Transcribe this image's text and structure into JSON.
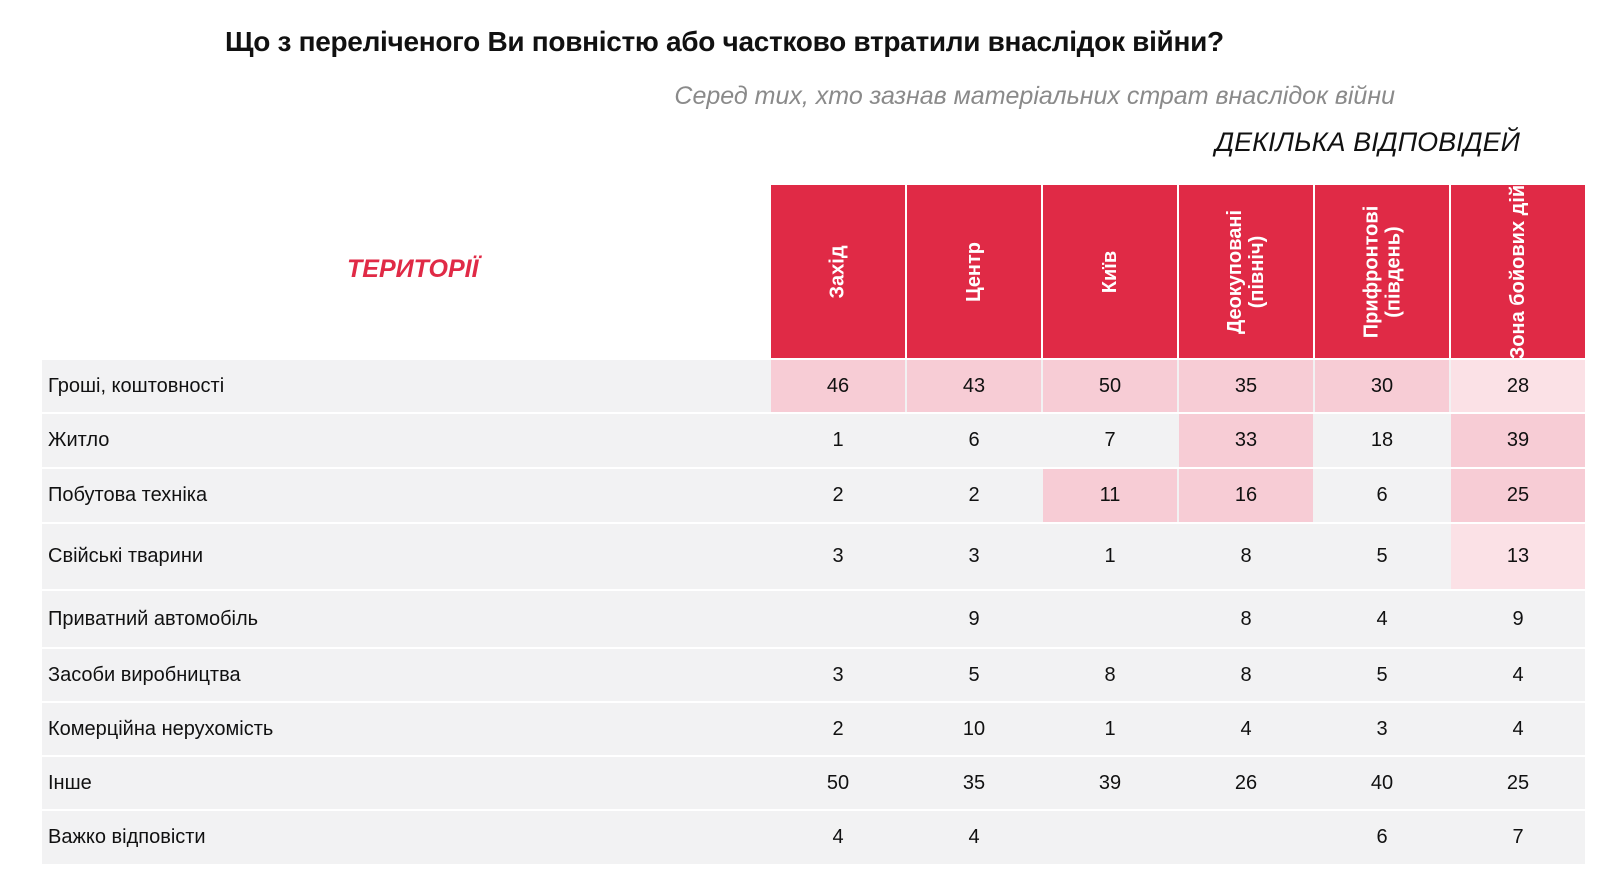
{
  "title": "Що з переліченого Ви повністю або частково втратили внаслідок війни?",
  "subtitle": "Серед тих, хто зазнав матеріальних страт внаслідок війни",
  "note": "ДЕКІЛЬКА ВІДПОВІДЕЙ",
  "table_label": "ТЕРИТОРІЇ",
  "colors": {
    "header": "#e02a46",
    "row_bg": "#f2f2f3",
    "highlight_strong": "#f7ccd5",
    "highlight_light": "#fbe1e6"
  },
  "chart_data": {
    "type": "table",
    "columns": [
      "Захід",
      "Центр",
      "Київ",
      "Деокуповані\n(північ)",
      "Прифронтові\n(південь)",
      "Зона бойових дій"
    ],
    "rows": [
      {
        "label": "Гроші, коштовності",
        "values": [
          "46",
          "43",
          "50",
          "35",
          "30",
          "28"
        ],
        "highlight": [
          "s",
          "s",
          "s",
          "s",
          "s",
          "l"
        ]
      },
      {
        "label": "Житло",
        "values": [
          "1",
          "6",
          "7",
          "33",
          "18",
          "39"
        ],
        "highlight": [
          "",
          "",
          "",
          "s",
          "",
          "s"
        ]
      },
      {
        "label": "Побутова техніка",
        "values": [
          "2",
          "2",
          "11",
          "16",
          "6",
          "25"
        ],
        "highlight": [
          "",
          "",
          "s",
          "s",
          "",
          "s"
        ]
      },
      {
        "label": "Свійські тварини",
        "values": [
          "3",
          "3",
          "1",
          "8",
          "5",
          "13"
        ],
        "highlight": [
          "",
          "",
          "",
          "",
          "",
          "l"
        ]
      },
      {
        "label": "Приватний автомобіль",
        "values": [
          "",
          "9",
          "",
          "8",
          "4",
          "9"
        ],
        "highlight": [
          "",
          "",
          "",
          "",
          "",
          ""
        ]
      },
      {
        "label": "Засоби виробництва",
        "values": [
          "3",
          "5",
          "8",
          "8",
          "5",
          "4"
        ],
        "highlight": [
          "",
          "",
          "",
          "",
          "",
          ""
        ]
      },
      {
        "label": "Комерційна нерухомість",
        "values": [
          "2",
          "10",
          "1",
          "4",
          "3",
          "4"
        ],
        "highlight": [
          "",
          "",
          "",
          "",
          "",
          ""
        ]
      },
      {
        "label": "Інше",
        "values": [
          "50",
          "35",
          "39",
          "26",
          "40",
          "25"
        ],
        "highlight": [
          "",
          "",
          "",
          "",
          "",
          ""
        ]
      },
      {
        "label": "Важко відповісти",
        "values": [
          "4",
          "4",
          "",
          "",
          "6",
          "7"
        ],
        "highlight": [
          "",
          "",
          "",
          "",
          "",
          ""
        ]
      }
    ]
  }
}
